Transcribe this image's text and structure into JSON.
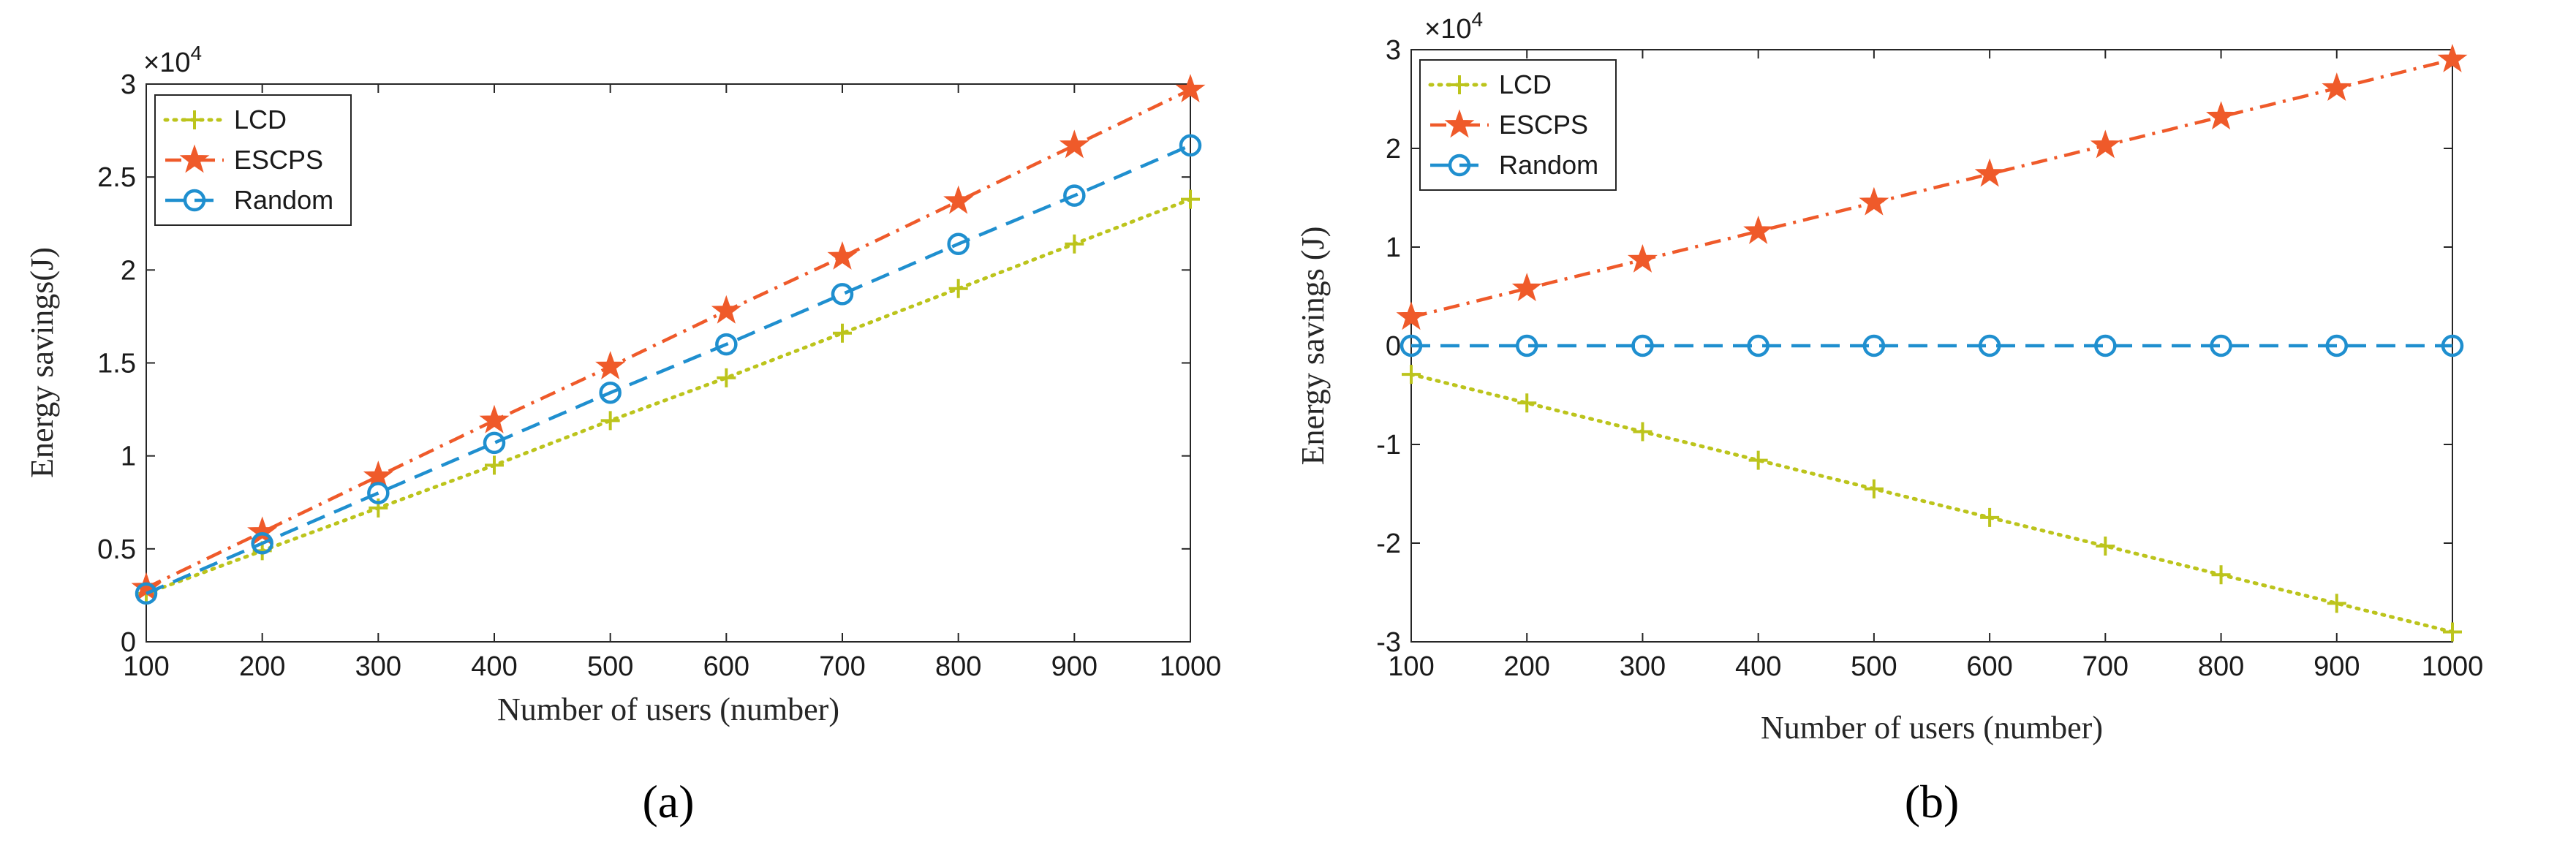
{
  "chart_data": [
    {
      "type": "line",
      "caption": "(a)",
      "xlabel": "Number of users (number)",
      "ylabel": "Energy savings(J)",
      "multiplier_base": "×10",
      "multiplier_exp": "4",
      "x": [
        100,
        200,
        300,
        400,
        500,
        600,
        700,
        800,
        900,
        1000
      ],
      "xlim": [
        100,
        1000
      ],
      "ylim": [
        0,
        3
      ],
      "xticks": [
        "100",
        "200",
        "300",
        "400",
        "500",
        "600",
        "700",
        "800",
        "900",
        "1000"
      ],
      "yticks": [
        "0",
        "0.5",
        "1",
        "1.5",
        "2",
        "2.5",
        "3"
      ],
      "grid": false,
      "legend": "top-left",
      "series": [
        {
          "name": "LCD",
          "color": "#bcc41c",
          "marker": "plus",
          "dash": "dotted",
          "values": [
            0.26,
            0.49,
            0.72,
            0.95,
            1.19,
            1.42,
            1.66,
            1.9,
            2.14,
            2.38
          ]
        },
        {
          "name": "ESCPS",
          "color": "#ef5a2a",
          "marker": "star",
          "dash": "dashdot",
          "values": [
            0.29,
            0.59,
            0.89,
            1.19,
            1.48,
            1.78,
            2.07,
            2.37,
            2.67,
            2.97
          ]
        },
        {
          "name": "Random",
          "color": "#1f8fcf",
          "marker": "circle",
          "dash": "dashed",
          "values": [
            0.26,
            0.53,
            0.8,
            1.07,
            1.34,
            1.6,
            1.87,
            2.14,
            2.4,
            2.67
          ]
        }
      ]
    },
    {
      "type": "line",
      "caption": "(b)",
      "xlabel": "Number of users (number)",
      "ylabel": "Energy savings (J)",
      "multiplier_base": "×10",
      "multiplier_exp": "4",
      "x": [
        100,
        200,
        300,
        400,
        500,
        600,
        700,
        800,
        900,
        1000
      ],
      "xlim": [
        100,
        1000
      ],
      "ylim": [
        -3,
        3
      ],
      "xticks": [
        "100",
        "200",
        "300",
        "400",
        "500",
        "600",
        "700",
        "800",
        "900",
        "1000"
      ],
      "yticks": [
        "-3",
        "-2",
        "-1",
        "0",
        "1",
        "2",
        "3"
      ],
      "grid": false,
      "legend": "top-left",
      "series": [
        {
          "name": "LCD",
          "color": "#bcc41c",
          "marker": "plus",
          "dash": "dotted",
          "values": [
            -0.29,
            -0.58,
            -0.87,
            -1.16,
            -1.45,
            -1.74,
            -2.03,
            -2.32,
            -2.61,
            -2.9
          ]
        },
        {
          "name": "ESCPS",
          "color": "#ef5a2a",
          "marker": "star",
          "dash": "dashdot",
          "values": [
            0.29,
            0.58,
            0.87,
            1.16,
            1.45,
            1.74,
            2.03,
            2.32,
            2.61,
            2.9
          ]
        },
        {
          "name": "Random",
          "color": "#1f8fcf",
          "marker": "circle",
          "dash": "dashed",
          "values": [
            0,
            0,
            0,
            0,
            0,
            0,
            0,
            0,
            0,
            0
          ]
        }
      ]
    }
  ]
}
